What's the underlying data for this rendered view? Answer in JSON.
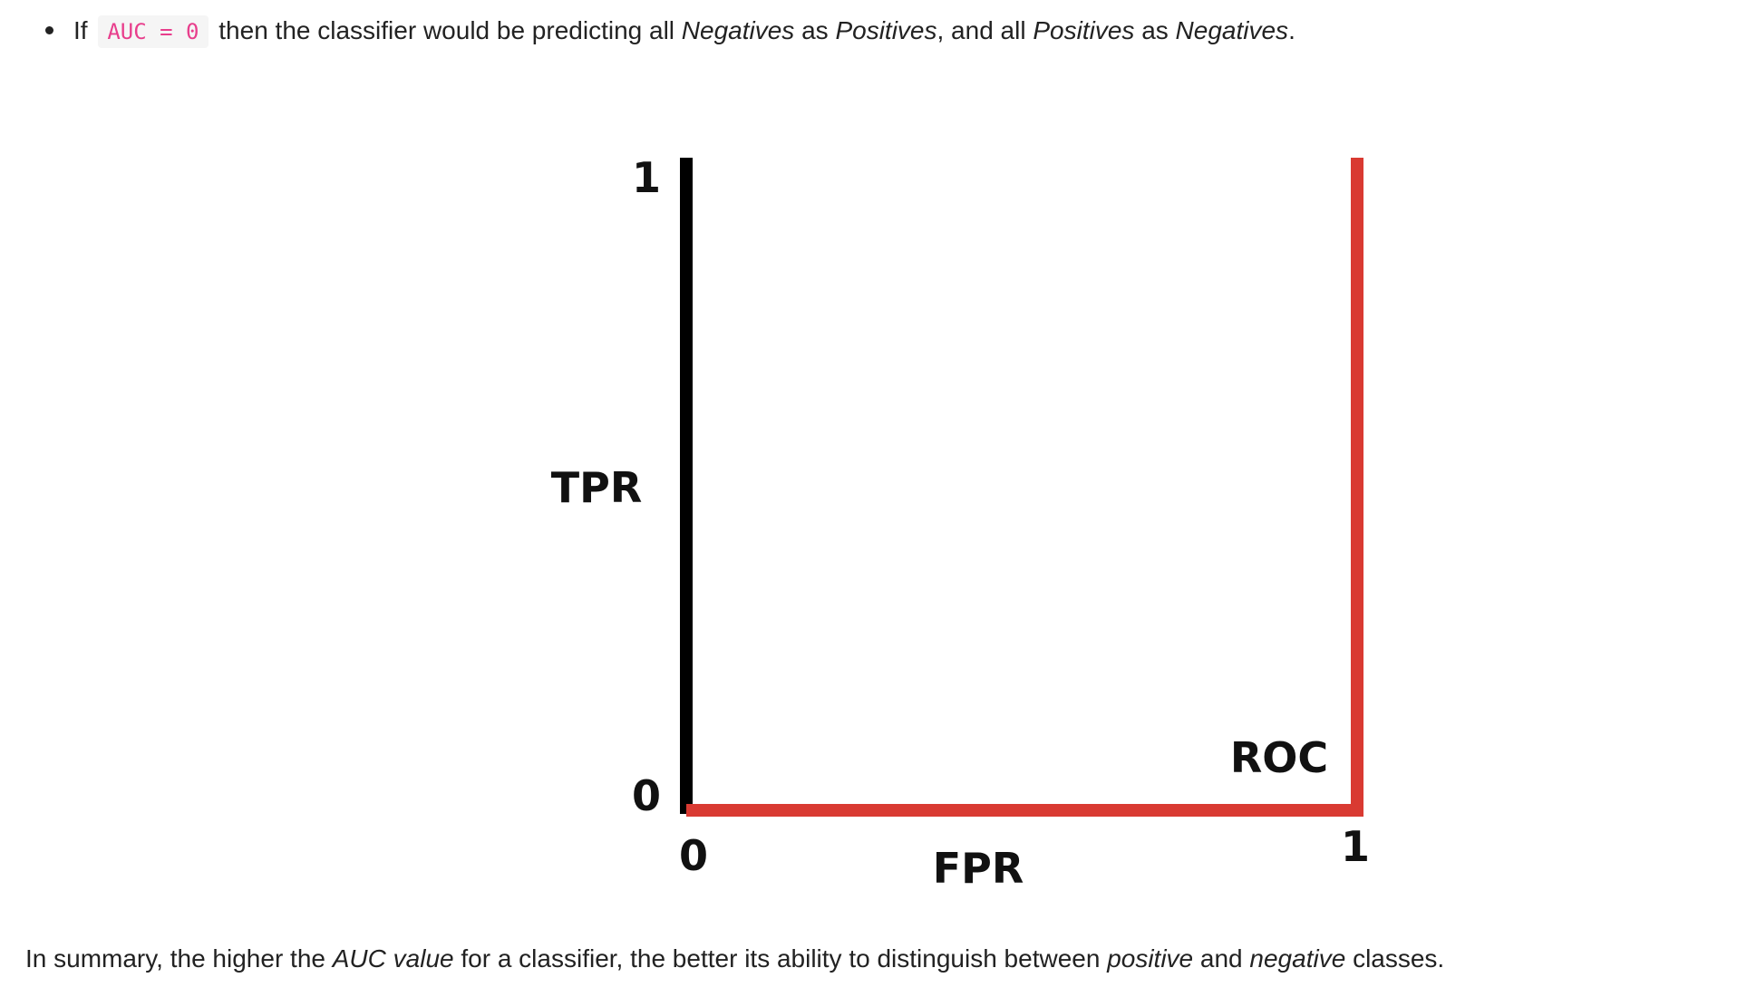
{
  "bullet": {
    "prefix": "If",
    "code": "AUC = 0",
    "text_1": "then the classifier would be predicting all",
    "em_1": "Negatives",
    "text_2": "as",
    "em_2": "Positives",
    "text_3": ", and all",
    "em_3": "Positives",
    "text_4": "as",
    "em_4": "Negatives",
    "text_5": "."
  },
  "chart_data": {
    "type": "line",
    "xlabel": "FPR",
    "ylabel": "TPR",
    "xlim": [
      0,
      1
    ],
    "ylim": [
      0,
      1
    ],
    "x_ticks": [
      "0",
      "1"
    ],
    "y_ticks": [
      "0",
      "1"
    ],
    "series": [
      {
        "name": "ROC",
        "x": [
          0,
          1,
          1
        ],
        "y": [
          0,
          0,
          1
        ],
        "color": "#d93a32"
      }
    ],
    "axis_color": "#000000",
    "grid": false
  },
  "summary": {
    "text_1": "In summary, the higher the",
    "em_1": "AUC value",
    "text_2": "for a classifier, the better its ability to distinguish between",
    "em_2": "positive",
    "text_3": "and",
    "em_3": "negative",
    "text_4": "classes."
  }
}
